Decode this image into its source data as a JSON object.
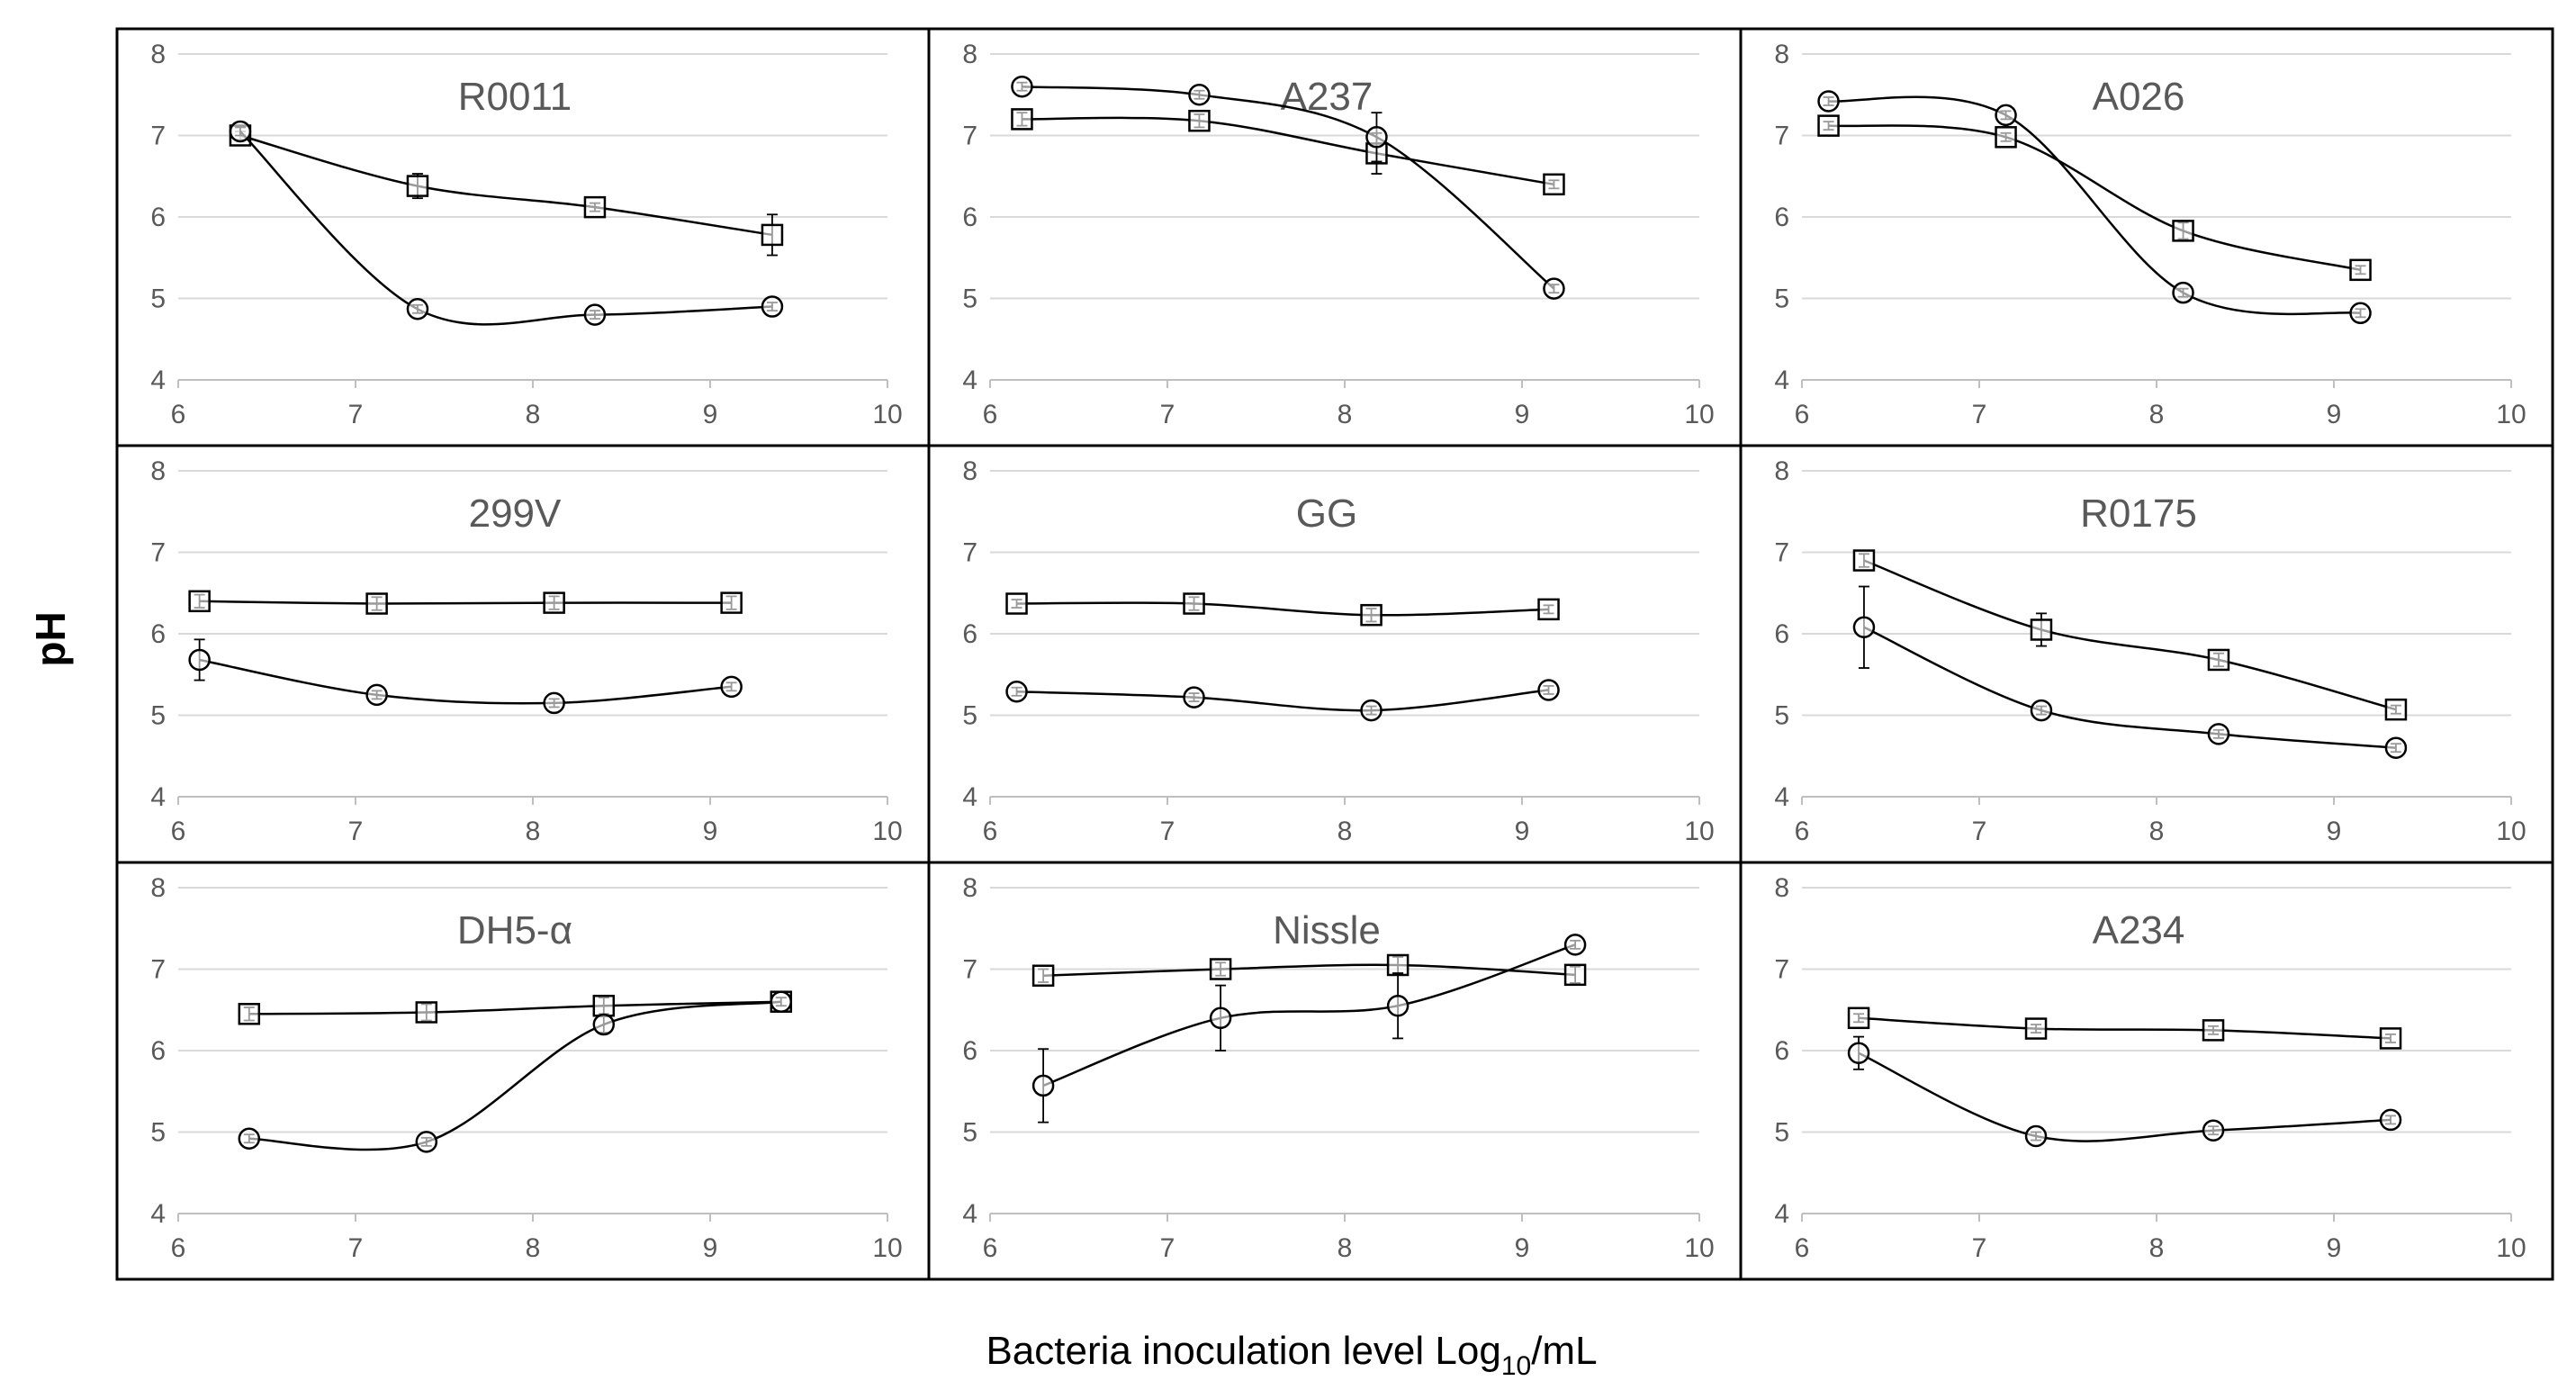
{
  "chart_data": {
    "type": "line",
    "ylabel": "pH",
    "xlabel": "Bacteria inoculation level Log",
    "xlabel_subscript": "10",
    "xlabel_suffix": "/mL",
    "xlim": [
      6,
      10
    ],
    "ylim": [
      4,
      8
    ],
    "x_ticks": [
      "6",
      "7",
      "8",
      "9",
      "10"
    ],
    "y_ticks": [
      "4",
      "5",
      "6",
      "7",
      "8"
    ],
    "grid": "horizontal",
    "markers": {
      "square_series": "square",
      "circle_series": "circle"
    },
    "panels": [
      {
        "title": "R0011",
        "series": [
          {
            "marker": "square",
            "points": [
              [
                6.35,
                7.0,
                0.05
              ],
              [
                7.35,
                6.38,
                0.15
              ],
              [
                8.35,
                6.12,
                0.05
              ],
              [
                9.35,
                5.78,
                0.25
              ]
            ]
          },
          {
            "marker": "circle",
            "points": [
              [
                6.35,
                7.05,
                0.05
              ],
              [
                7.35,
                4.87,
                0.05
              ],
              [
                8.35,
                4.8,
                0.05
              ],
              [
                9.35,
                4.9,
                0.05
              ]
            ]
          }
        ]
      },
      {
        "title": "A237",
        "series": [
          {
            "marker": "square",
            "points": [
              [
                6.18,
                7.2,
                0.08
              ],
              [
                7.18,
                7.18,
                0.08
              ],
              [
                8.18,
                6.78,
                0.25
              ],
              [
                9.18,
                6.4,
                0.05
              ]
            ]
          },
          {
            "marker": "circle",
            "points": [
              [
                6.18,
                7.6,
                0.05
              ],
              [
                7.18,
                7.5,
                0.05
              ],
              [
                8.18,
                6.98,
                0.3
              ],
              [
                9.18,
                5.12,
                0.05
              ]
            ]
          }
        ]
      },
      {
        "title": "A026",
        "series": [
          {
            "marker": "square",
            "points": [
              [
                6.15,
                7.12,
                0.05
              ],
              [
                7.15,
                6.98,
                0.05
              ],
              [
                8.15,
                5.83,
                0.1
              ],
              [
                9.15,
                5.35,
                0.05
              ]
            ]
          },
          {
            "marker": "circle",
            "points": [
              [
                6.15,
                7.42,
                0.05
              ],
              [
                7.15,
                7.25,
                0.05
              ],
              [
                8.15,
                5.07,
                0.05
              ],
              [
                9.15,
                4.82,
                0.05
              ]
            ]
          }
        ]
      },
      {
        "title": "299V",
        "series": [
          {
            "marker": "square",
            "points": [
              [
                6.12,
                6.4,
                0.08
              ],
              [
                7.12,
                6.37,
                0.08
              ],
              [
                8.12,
                6.38,
                0.08
              ],
              [
                9.12,
                6.38,
                0.08
              ]
            ]
          },
          {
            "marker": "circle",
            "points": [
              [
                6.12,
                5.68,
                0.25
              ],
              [
                7.12,
                5.25,
                0.05
              ],
              [
                8.12,
                5.15,
                0.05
              ],
              [
                9.12,
                5.35,
                0.05
              ]
            ]
          }
        ]
      },
      {
        "title": "GG",
        "series": [
          {
            "marker": "square",
            "points": [
              [
                6.15,
                6.37,
                0.05
              ],
              [
                7.15,
                6.37,
                0.08
              ],
              [
                8.15,
                6.23,
                0.08
              ],
              [
                9.15,
                6.3,
                0.05
              ]
            ]
          },
          {
            "marker": "circle",
            "points": [
              [
                6.15,
                5.29,
                0.05
              ],
              [
                7.15,
                5.22,
                0.05
              ],
              [
                8.15,
                5.06,
                0.05
              ],
              [
                9.15,
                5.31,
                0.05
              ]
            ]
          }
        ]
      },
      {
        "title": "R0175",
        "series": [
          {
            "marker": "square",
            "points": [
              [
                6.35,
                6.9,
                0.08
              ],
              [
                7.35,
                6.05,
                0.2
              ],
              [
                8.35,
                5.68,
                0.08
              ],
              [
                9.35,
                5.07,
                0.05
              ]
            ]
          },
          {
            "marker": "circle",
            "points": [
              [
                6.35,
                6.08,
                0.5
              ],
              [
                7.35,
                5.06,
                0.05
              ],
              [
                8.35,
                4.77,
                0.05
              ],
              [
                9.35,
                4.6,
                0.05
              ]
            ]
          }
        ]
      },
      {
        "title": "DH5-α",
        "series": [
          {
            "marker": "square",
            "points": [
              [
                6.4,
                6.45,
                0.08
              ],
              [
                7.4,
                6.47,
                0.1
              ],
              [
                8.4,
                6.55,
                0.1
              ],
              [
                9.4,
                6.6,
                0.05
              ]
            ]
          },
          {
            "marker": "circle",
            "points": [
              [
                6.4,
                4.92,
                0.05
              ],
              [
                7.4,
                4.88,
                0.05
              ],
              [
                8.4,
                6.32,
                0.1
              ],
              [
                9.4,
                6.6,
                0.05
              ]
            ]
          }
        ]
      },
      {
        "title": "Nissle",
        "series": [
          {
            "marker": "square",
            "points": [
              [
                6.3,
                6.92,
                0.08
              ],
              [
                7.3,
                7.0,
                0.08
              ],
              [
                8.3,
                7.05,
                0.1
              ],
              [
                9.3,
                6.93,
                0.1
              ]
            ]
          },
          {
            "marker": "circle",
            "points": [
              [
                6.3,
                5.57,
                0.45
              ],
              [
                7.3,
                6.4,
                0.4
              ],
              [
                8.3,
                6.55,
                0.4
              ],
              [
                9.3,
                7.3,
                0.05
              ]
            ]
          }
        ]
      },
      {
        "title": "A234",
        "series": [
          {
            "marker": "square",
            "points": [
              [
                6.32,
                6.4,
                0.05
              ],
              [
                7.32,
                6.27,
                0.05
              ],
              [
                8.32,
                6.25,
                0.05
              ],
              [
                9.32,
                6.15,
                0.05
              ]
            ]
          },
          {
            "marker": "circle",
            "points": [
              [
                6.32,
                5.97,
                0.2
              ],
              [
                7.32,
                4.95,
                0.05
              ],
              [
                8.32,
                5.02,
                0.05
              ],
              [
                9.32,
                5.15,
                0.05
              ]
            ]
          }
        ]
      }
    ]
  }
}
